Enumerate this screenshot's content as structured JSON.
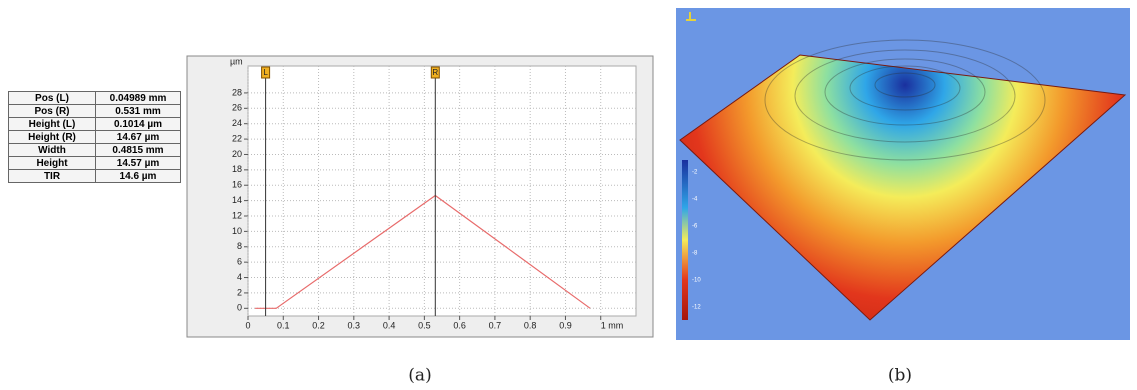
{
  "table": {
    "rows": [
      [
        "Pos (L)",
        "0.04989 mm"
      ],
      [
        "Pos (R)",
        "0.531 mm"
      ],
      [
        "Height (L)",
        "0.1014 µm"
      ],
      [
        "Height (R)",
        "14.67 µm"
      ],
      [
        "Width",
        "0.4815 mm"
      ],
      [
        "Height",
        "14.57 µm"
      ],
      [
        "TIR",
        "14.6 µm"
      ]
    ]
  },
  "chart_data": {
    "type": "line",
    "y_unit_label": "µm",
    "xlim": [
      0,
      1.1
    ],
    "ylim": [
      -1,
      31.5
    ],
    "xticks": [
      0,
      0.1,
      0.2,
      0.3,
      0.4,
      0.5,
      0.6,
      0.7,
      0.8,
      0.9,
      {
        "value": 1,
        "label": "1 mm"
      }
    ],
    "yticks": [
      0,
      2,
      4,
      6,
      8,
      10,
      12,
      14,
      16,
      18,
      20,
      22,
      24,
      26,
      28
    ],
    "grid": true,
    "series": [
      {
        "color": "#e86b6b",
        "x": [
          0.02,
          0.08,
          0.531,
          0.97
        ],
        "values": [
          0,
          0,
          14.67,
          0
        ]
      }
    ],
    "cursors": [
      {
        "label": "L",
        "x": 0.04989
      },
      {
        "label": "R",
        "x": 0.531
      }
    ]
  },
  "colorbar_ticks": [
    -2,
    -4,
    -6,
    -8,
    -10,
    -12
  ],
  "captions": [
    "(a)",
    "(b)"
  ]
}
